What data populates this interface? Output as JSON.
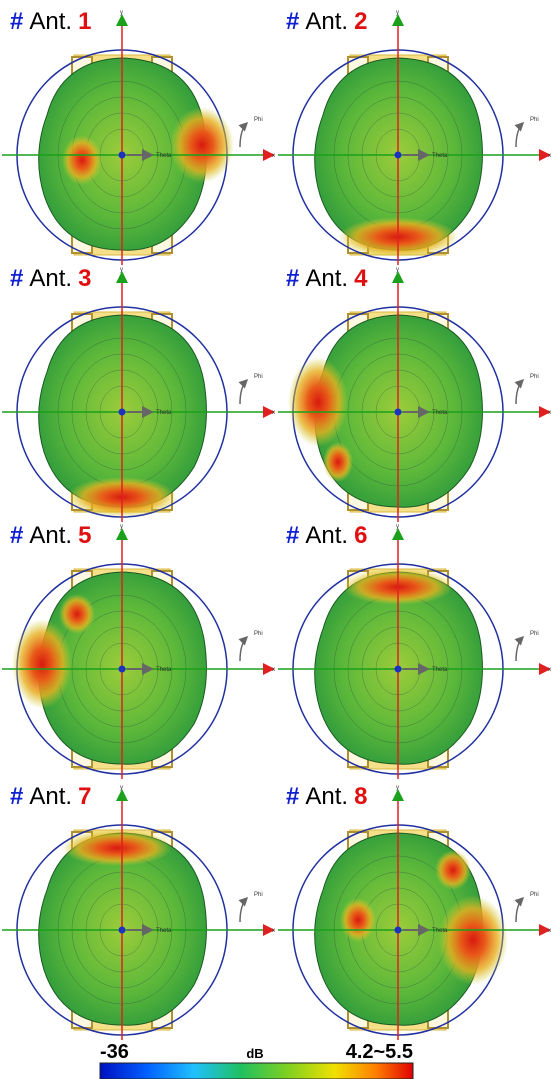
{
  "panels": [
    {
      "hash": "#",
      "label": "Ant.",
      "number": "1"
    },
    {
      "hash": "#",
      "label": "Ant.",
      "number": "2"
    },
    {
      "hash": "#",
      "label": "Ant.",
      "number": "3"
    },
    {
      "hash": "#",
      "label": "Ant.",
      "number": "4"
    },
    {
      "hash": "#",
      "label": "Ant.",
      "number": "5"
    },
    {
      "hash": "#",
      "label": "Ant.",
      "number": "6"
    },
    {
      "hash": "#",
      "label": "Ant.",
      "number": "7"
    },
    {
      "hash": "#",
      "label": "Ant.",
      "number": "8"
    }
  ],
  "axes": {
    "x": "x",
    "y": "y",
    "phi": "Phi",
    "theta": "Theta"
  },
  "colorbar": {
    "min_label": "-36",
    "unit": "dB",
    "max_label": "4.2~5.5"
  }
}
